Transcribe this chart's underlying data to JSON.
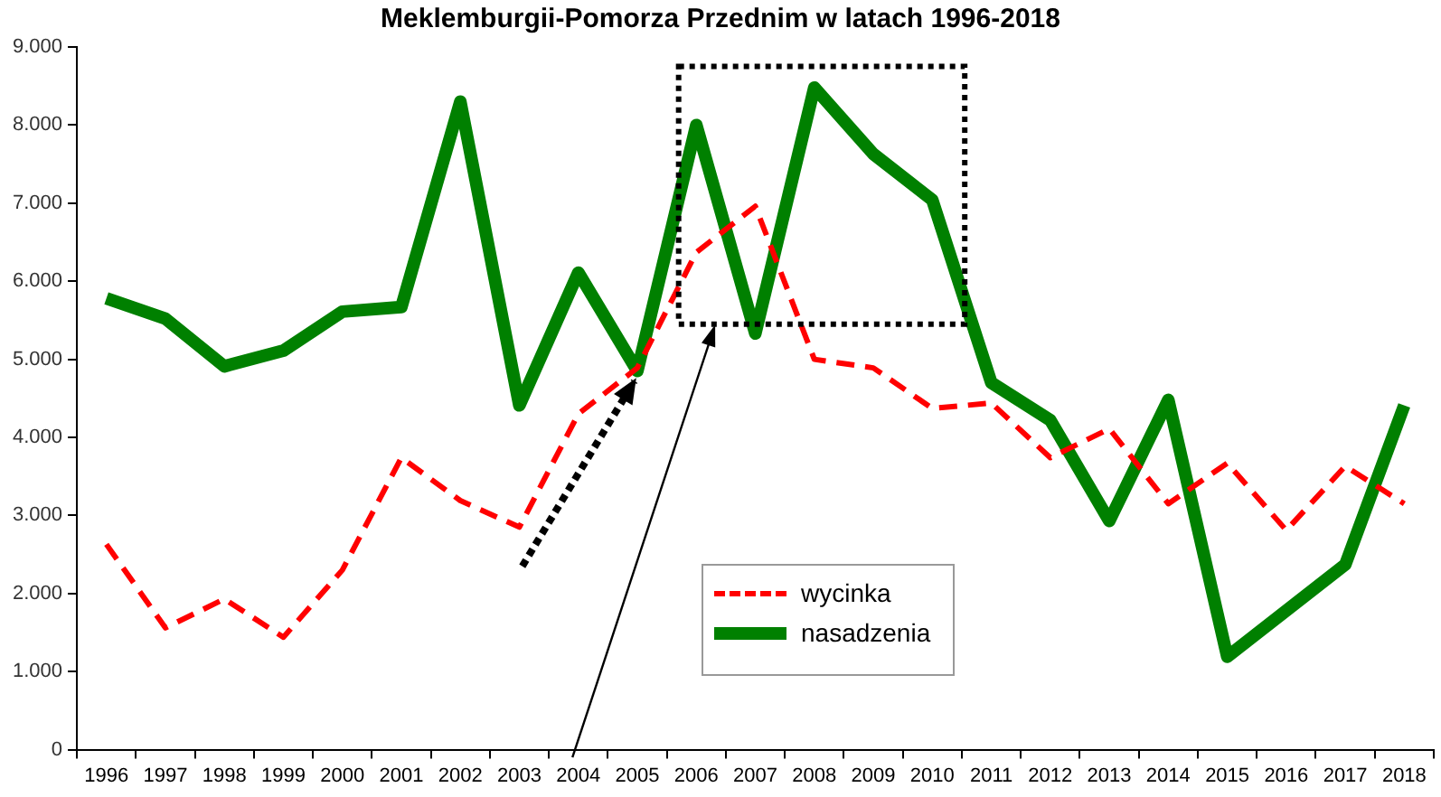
{
  "chart_data": {
    "type": "line",
    "title": "Meklemburgii-Pomorza Przednim w latach 1996-2018",
    "categories": [
      "1996",
      "1997",
      "1998",
      "1999",
      "2000",
      "2001",
      "2002",
      "2003",
      "2004",
      "2005",
      "2006",
      "2007",
      "2008",
      "2009",
      "2010",
      "2011",
      "2012",
      "2013",
      "2014",
      "2015",
      "2016",
      "2017",
      "2018"
    ],
    "series": [
      {
        "name": "wycinka",
        "color": "#ff0000",
        "line_style": "dashed",
        "values": [
          2630,
          1560,
          1930,
          1440,
          2300,
          3740,
          3190,
          2850,
          4300,
          4890,
          6370,
          6960,
          5000,
          4890,
          4370,
          4440,
          3740,
          4110,
          3150,
          3670,
          2810,
          3630,
          3150
        ]
      },
      {
        "name": "nasadzenia",
        "color": "#008000",
        "line_style": "solid",
        "values": [
          5780,
          5520,
          4910,
          5110,
          5610,
          5670,
          8300,
          4410,
          6110,
          4850,
          8000,
          5330,
          8480,
          7630,
          7040,
          4700,
          4220,
          2930,
          4480,
          1190,
          1780,
          2370,
          4410
        ]
      }
    ],
    "ylim": [
      0,
      9000
    ],
    "yticks": [
      {
        "value": 0,
        "label": "0"
      },
      {
        "value": 1000,
        "label": "1.000"
      },
      {
        "value": 2000,
        "label": "2.000"
      },
      {
        "value": 3000,
        "label": "3.000"
      },
      {
        "value": 4000,
        "label": "4.000"
      },
      {
        "value": 5000,
        "label": "5.000"
      },
      {
        "value": 6000,
        "label": "6.000"
      },
      {
        "value": 7000,
        "label": "7.000"
      },
      {
        "value": 8000,
        "label": "8.000"
      },
      {
        "value": 9000,
        "label": "9.000"
      }
    ],
    "grid": false,
    "legend": "bottom",
    "marker": "none"
  }
}
